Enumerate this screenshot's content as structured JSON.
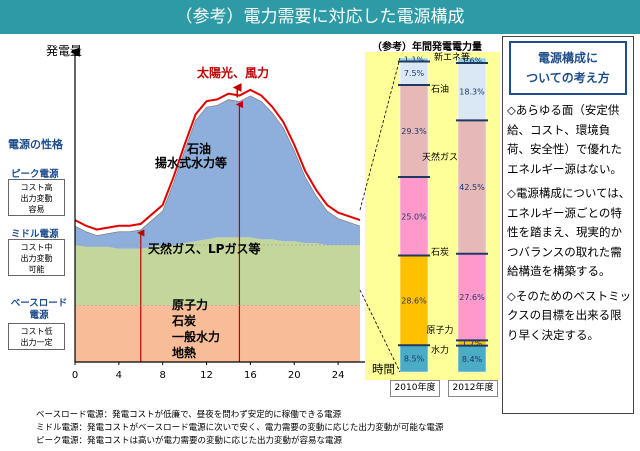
{
  "title": "（参考）電力需要に対応した電源構成",
  "chart_data": [
    {
      "type": "area",
      "ylabel": "発電量",
      "xlabel": "時間",
      "x_ticks": [
        0,
        4,
        8,
        12,
        16,
        20,
        24
      ],
      "xlim": [
        0,
        26
      ],
      "hours": [
        0,
        1,
        2,
        3,
        4,
        5,
        6,
        7,
        8,
        9,
        10,
        11,
        12,
        13,
        14,
        15,
        16,
        17,
        18,
        19,
        20,
        21,
        22,
        23,
        24,
        25,
        26
      ],
      "series": [
        {
          "name": "ベースロード電源",
          "label": [
            "原子力",
            "石炭",
            "一般水力",
            "地熱"
          ],
          "color": "#f8bd98",
          "values": [
            30,
            30,
            30,
            30,
            30,
            30,
            30,
            30,
            30,
            30,
            30,
            30,
            30,
            30,
            30,
            30,
            30,
            30,
            30,
            30,
            30,
            30,
            30,
            30,
            30,
            30,
            30
          ]
        },
        {
          "name": "ミドル電源",
          "label": "天然ガス、LPガス等",
          "color": "#c3d69b",
          "values": [
            62,
            61,
            61,
            61,
            60,
            60,
            60,
            61,
            62,
            62,
            63,
            64,
            65,
            66,
            66,
            66,
            66,
            65,
            65,
            64,
            64,
            63,
            63,
            62,
            62,
            62,
            62
          ]
        },
        {
          "name": "ピーク電源",
          "label": [
            "石油",
            "揚水式水力等"
          ],
          "color": "#8eaedc",
          "values": [
            72,
            69,
            67,
            68,
            69,
            69,
            70,
            75,
            80,
            95,
            112,
            128,
            135,
            136,
            139,
            138,
            141,
            138,
            132,
            124,
            112,
            98,
            88,
            80,
            76,
            74,
            72
          ]
        }
      ],
      "annotation": "太陽光、風力"
    },
    {
      "type": "bar",
      "title": "（参考）年間発電電力量",
      "categories": [
        "2010年度",
        "2012年度"
      ],
      "series": [
        {
          "name": "水力",
          "color": "#4bacc6",
          "values": [
            8.5,
            8.4
          ]
        },
        {
          "name": "原子力",
          "color": "#ffc000",
          "values": [
            28.6,
            1.7
          ]
        },
        {
          "name": "石炭",
          "color": "#ff99cc",
          "values": [
            25.0,
            27.6
          ]
        },
        {
          "name": "天然ガス",
          "color": "#e6b9b8",
          "values": [
            29.3,
            42.5
          ]
        },
        {
          "name": "石油",
          "color": "#dae8f5",
          "values": [
            7.5,
            18.3
          ]
        },
        {
          "name": "新エネ等",
          "color": "#92d1dd",
          "values": [
            1.1,
            1.6
          ]
        }
      ],
      "value_labels": {
        "2010年度": [
          "8.5%",
          "28.6%",
          "25.0%",
          "29.3%",
          "7.5%",
          "1.1%"
        ],
        "2012年度": [
          "8.4%",
          "1.7%",
          "27.6%",
          "42.5%",
          "18.3%",
          "1.6%"
        ]
      }
    }
  ],
  "categories": {
    "heading": "電源の性格",
    "peak": {
      "name": "ピーク電源",
      "desc": [
        "コスト高",
        "出力変動",
        "容易"
      ]
    },
    "middle": {
      "name": "ミドル電源",
      "desc": [
        "コスト中",
        "出力変動",
        "可能"
      ]
    },
    "base": {
      "name": "ベースロード電源",
      "desc": [
        "コスト低",
        "出力一定"
      ]
    }
  },
  "side_panel": {
    "heading_line1": "電源構成に",
    "heading_line2": "ついての考え方",
    "bullets": [
      "◇あらゆる面（安定供給、コスト、環境負荷、安全性）で優れたエネルギー源はない。",
      "◇電源構成については、エネルギー源ごとの特性を踏まえ、現実的かつバランスの取れた需給構造を構築する。",
      "◇そのためのベストミックスの目標を出来る限り早く決定する。"
    ]
  },
  "notes": [
    "ベースロード電源：発電コストが低廉で、昼夜を問わず安定的に稼働できる電源",
    "ミドル電源：発電コストがベースロード電源に次いで安く、電力需要の変動に応じた出力変動が可能な電源",
    "ピーク電源：発電コストは高いが電力需要の変動に応じた出力変動が容易な電源"
  ]
}
